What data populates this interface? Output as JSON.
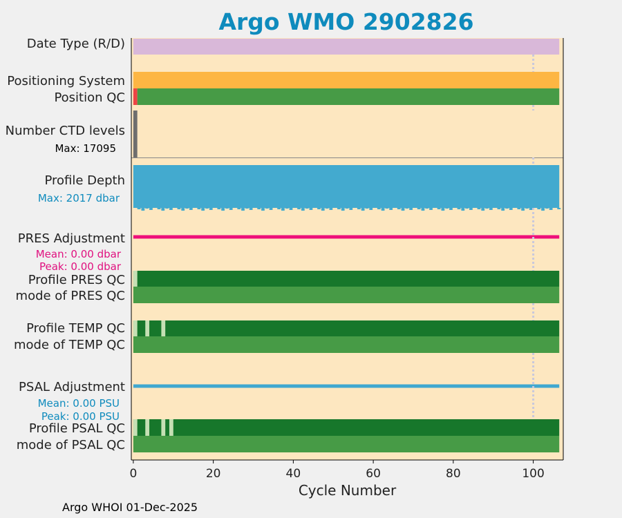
{
  "title": "Argo WMO 2902826",
  "footer": "Argo WHOI 01-Dec-2025",
  "colors": {
    "panel_bg": "#fde7c0",
    "figure_bg": "#f0f0f0",
    "date_type": "#d9b8d9",
    "positioning": "#fdb643",
    "qc_good": "#479b46",
    "qc_good_dark": "#17772b",
    "qc_missing": "#c5e0b4",
    "qc_bad": "#ee4444",
    "ctd": "#6e6e6e",
    "depth": "#43aacf",
    "pres_adj": "#ee0f7a",
    "psal_adj": "#40a8d0",
    "title": "#0f8bbd",
    "pres_text": "#e0117f",
    "depth_text": "#0f8bbd",
    "dotted_line": "#c8c8dc"
  },
  "chart_data": {
    "type": "bar",
    "title": "Argo WMO 2902826",
    "xlabel": "Cycle Number",
    "xlim": [
      -0.5,
      107.5
    ],
    "xticks": [
      "0",
      "20",
      "40",
      "60",
      "80",
      "100"
    ],
    "xtick_values": [
      0,
      20,
      40,
      60,
      80,
      100
    ],
    "last_cycle": 106,
    "marker_line_cycle": 100,
    "rows": {
      "date_type": {
        "label": "Date Type (R/D)",
        "start": 0,
        "end": 106.5
      },
      "positioning_system": {
        "label": "Positioning System",
        "start": 0,
        "end": 106.5
      },
      "position_qc": {
        "label": "Position QC",
        "bad_segments": [
          [
            0,
            1
          ]
        ],
        "good_from": 1,
        "end": 106.5
      },
      "ctd_levels": {
        "label": "Number CTD levels",
        "max_label": "Max: 17095",
        "max_value": 17095,
        "segments": [
          [
            0,
            1
          ]
        ]
      },
      "profile_depth": {
        "label": "Profile Depth",
        "max_label": "Max: 2017 dbar",
        "max_value": 2017,
        "start": 0,
        "end": 106.5
      },
      "pres_adjustment": {
        "label": "PRES Adjustment",
        "mean_label": "Mean: 0.00 dbar",
        "peak_label": "Peak: 0.00 dbar",
        "mean": 0.0,
        "peak": 0.0
      },
      "profile_pres_qc": {
        "label": "Profile PRES QC",
        "missing_segments": [
          [
            0,
            1
          ]
        ]
      },
      "mode_pres_qc": {
        "label": "mode of PRES QC"
      },
      "profile_temp_qc": {
        "label": "Profile TEMP QC",
        "missing_segments": [
          [
            0,
            1
          ],
          [
            3,
            4
          ],
          [
            7,
            8
          ]
        ]
      },
      "mode_temp_qc": {
        "label": "mode of TEMP QC"
      },
      "psal_adjustment": {
        "label": "PSAL Adjustment",
        "mean_label": "Mean: 0.00 PSU",
        "peak_label": "Peak: 0.00 PSU",
        "mean": 0.0,
        "peak": 0.0
      },
      "profile_psal_qc": {
        "label": "Profile PSAL QC",
        "missing_segments": [
          [
            0,
            1
          ],
          [
            3,
            4
          ],
          [
            7,
            8
          ],
          [
            9,
            10
          ]
        ]
      },
      "mode_psal_qc": {
        "label": "mode of PSAL QC"
      }
    }
  }
}
